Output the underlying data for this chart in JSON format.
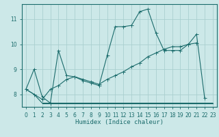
{
  "xlabel": "Humidex (Indice chaleur)",
  "bg_color": "#cce8e8",
  "grid_color": "#aacfcf",
  "line_color": "#1a6b6b",
  "xlim": [
    -0.5,
    23.5
  ],
  "ylim": [
    7.5,
    11.6
  ],
  "xticks": [
    0,
    1,
    2,
    3,
    4,
    5,
    6,
    7,
    8,
    9,
    10,
    11,
    12,
    13,
    14,
    15,
    16,
    17,
    18,
    19,
    20,
    21,
    22,
    23
  ],
  "yticks": [
    8,
    9,
    10,
    11
  ],
  "series": [
    {
      "x": [
        0,
        1,
        2,
        3,
        4,
        5,
        6,
        7,
        8,
        9,
        10,
        11,
        12,
        13,
        14,
        15,
        16,
        17,
        18,
        19,
        20,
        21,
        22
      ],
      "y": [
        8.2,
        9.0,
        7.9,
        7.65,
        9.75,
        8.75,
        8.7,
        8.55,
        8.45,
        8.35,
        9.55,
        10.7,
        10.7,
        10.75,
        11.3,
        11.4,
        10.45,
        9.75,
        9.75,
        9.75,
        10.0,
        10.4,
        7.85
      ],
      "marker": true
    },
    {
      "x": [
        0,
        1,
        2,
        3,
        4,
        5,
        6,
        7,
        8,
        9,
        10,
        11,
        12,
        13,
        14,
        15,
        16,
        17,
        18,
        19,
        20,
        21
      ],
      "y": [
        8.2,
        8.0,
        7.8,
        8.2,
        8.35,
        8.6,
        8.7,
        8.6,
        8.5,
        8.4,
        8.6,
        8.75,
        8.9,
        9.1,
        9.25,
        9.5,
        9.65,
        9.8,
        9.9,
        9.9,
        10.0,
        10.05
      ],
      "marker": true
    },
    {
      "x": [
        2,
        3,
        4,
        5,
        6,
        7,
        8,
        9,
        10,
        11,
        12,
        13,
        14,
        15,
        16,
        17,
        18,
        19,
        20,
        21,
        22,
        23
      ],
      "y": [
        7.65,
        7.65,
        7.65,
        7.65,
        7.65,
        7.65,
        7.65,
        7.65,
        7.65,
        7.65,
        7.65,
        7.65,
        7.65,
        7.65,
        7.65,
        7.65,
        7.65,
        7.65,
        7.65,
        7.65,
        7.65,
        7.65
      ],
      "marker": false
    },
    {
      "x": [
        0,
        1,
        2,
        23
      ],
      "y": [
        8.2,
        8.0,
        7.65,
        7.65
      ],
      "marker": false
    }
  ]
}
